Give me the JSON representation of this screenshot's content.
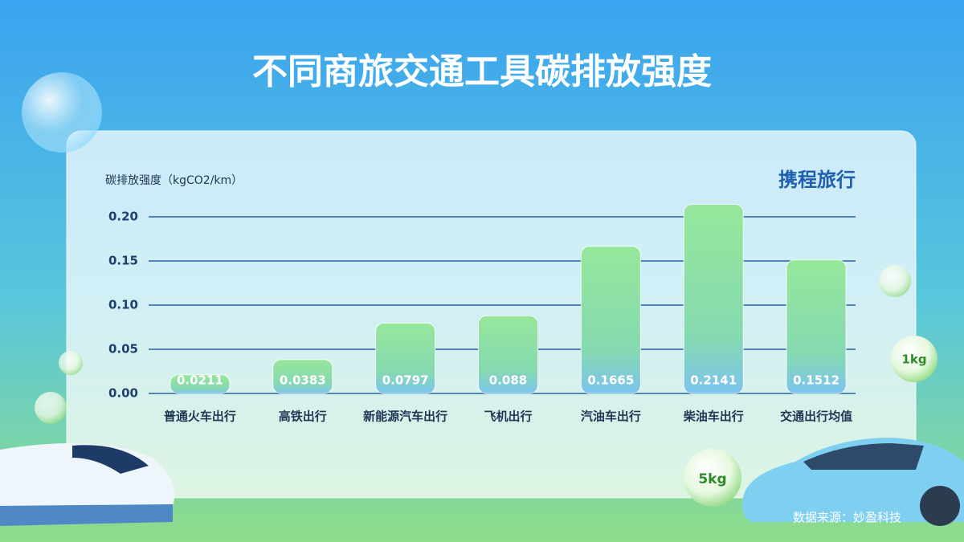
{
  "chart_data": {
    "type": "bar",
    "title": "不同商旅交通工具碳排放强度",
    "ylabel": "碳排放强度（kgCO2/km）",
    "logo": "携程旅行",
    "source": "数据来源：妙盈科技",
    "annotations": [
      "1kg",
      "5kg"
    ],
    "categories": [
      "普通火车出行",
      "高铁出行",
      "新能源汽车出行",
      "飞机出行",
      "汽油车出行",
      "柴油车出行",
      "交通出行均值"
    ],
    "values": [
      0.0211,
      0.0383,
      0.0797,
      0.088,
      0.1665,
      0.2141,
      0.1512
    ],
    "color": "#8ee39c",
    "ylim": [
      0,
      0.22
    ],
    "yticks": [
      {
        "value": 0,
        "label": "0.00"
      },
      {
        "value": 0.05,
        "label": "0.05"
      },
      {
        "value": 0.1,
        "label": "0.10"
      },
      {
        "value": 0.15,
        "label": "0.15"
      },
      {
        "value": 0.2,
        "label": "0.20"
      }
    ],
    "grid": true
  }
}
